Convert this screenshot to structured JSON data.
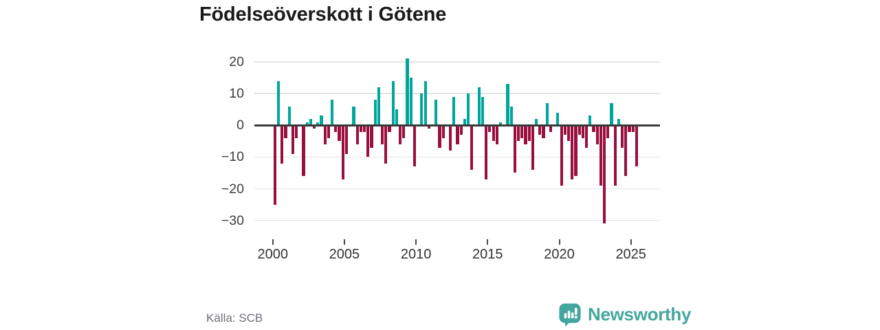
{
  "header": {
    "title": "Födelseöverskott i Götene"
  },
  "footer": {
    "source": "Källa: SCB",
    "brand": "Newsworthy"
  },
  "chart_data": {
    "type": "bar",
    "title": "Födelseöverskott i Götene",
    "source": "Källa: SCB",
    "frequency": "quarterly",
    "start_year": 2000,
    "end_period": "2025 Q2",
    "x_ticks": [
      2000,
      2005,
      2010,
      2015,
      2020,
      2025
    ],
    "y_ticks": [
      20,
      10,
      0,
      -10,
      -20,
      -30
    ],
    "ylim": [
      -33,
      23
    ],
    "grid": true,
    "positive_color": "#00a59b",
    "negative_color": "#990f3d",
    "values": [
      -25,
      14,
      -12,
      -4,
      6,
      -9,
      -4,
      0,
      -16,
      1,
      2,
      -1,
      1,
      3,
      -6,
      -4,
      8,
      -2,
      -5,
      -17,
      -9,
      0,
      6,
      -6,
      -2,
      -2,
      -10,
      -7,
      8,
      12,
      -6,
      -12,
      -2,
      14,
      5,
      -6,
      -4,
      21,
      15,
      -13,
      0,
      10,
      14,
      -1,
      0,
      8,
      -7,
      -4,
      0,
      -8,
      9,
      -6,
      -3,
      2,
      10,
      -14,
      0,
      12,
      9,
      -17,
      -2,
      -5,
      -6,
      1,
      0,
      13,
      6,
      -15,
      -5,
      -4,
      -6,
      -5,
      -14,
      2,
      -3,
      -4,
      7,
      -2,
      0,
      4,
      -19,
      -3,
      -5,
      -17,
      -16,
      -3,
      -4,
      -7,
      3,
      -2,
      -6,
      -19,
      -31,
      -4,
      7,
      -19,
      2,
      -7,
      -16,
      -2,
      -2,
      -13
    ]
  }
}
